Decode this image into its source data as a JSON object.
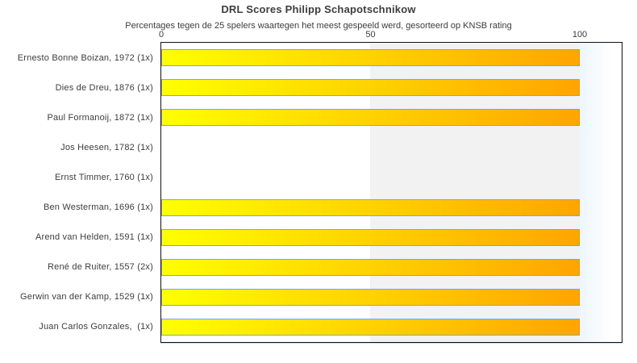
{
  "header": {
    "title": "DRL Scores Philipp Schapotschnikow",
    "subtitle": "Percentages tegen de 25 spelers waartegen het meest gespeeld werd, gesorteerd op KNSB rating"
  },
  "colors": {
    "bar_gradient_start": "#ffff00",
    "bar_gradient_end": "#ffa500",
    "bar_border": "#73aad9",
    "band_mid_gray": "#f2f2f2",
    "band_right_blue": "#eef6fc",
    "plot_border": "#111111",
    "axis_underline": "#bcdcee",
    "text": "#3d3d3d"
  },
  "chart_data": {
    "type": "bar",
    "orientation": "horizontal",
    "title": "DRL Scores Philipp Schapotschnikow",
    "subtitle": "Percentages tegen de 25 spelers waartegen het meest gespeeld werd, gesorteerd op KNSB rating",
    "categories": [
      "Ernesto Bonne Boizan, 1972 (1x)",
      "Dies de Dreu, 1876 (1x)",
      "Paul Formanoij, 1872 (1x)",
      "Jos Heesen, 1782 (1x)",
      "Ernst Timmer, 1760 (1x)",
      "Ben Westerman, 1696 (1x)",
      "Arend van Helden, 1591 (1x)",
      "René de Ruiter, 1557 (2x)",
      "Gerwin van der Kamp, 1529 (1x)",
      "Juan Carlos Gonzales,  (1x)"
    ],
    "values": [
      100,
      100,
      100,
      0,
      0,
      100,
      100,
      100,
      100,
      100
    ],
    "xlabel": "",
    "ylabel": "",
    "xlim": [
      0,
      110
    ],
    "xticks": [
      0,
      50,
      100
    ],
    "grid": false,
    "legend": false,
    "shaded_band_x": [
      50,
      100
    ]
  }
}
